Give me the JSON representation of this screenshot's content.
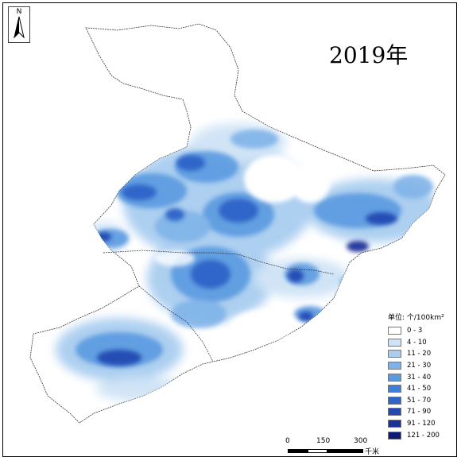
{
  "title": "2019年",
  "north_arrow": {
    "label": "N",
    "icon": "north-arrow-icon"
  },
  "legend": {
    "title": "单位: 个/100km²",
    "classes": [
      {
        "label": "0 - 3",
        "color": "#ffffff"
      },
      {
        "label": "4 - 10",
        "color": "#cfe3f6"
      },
      {
        "label": "11 - 20",
        "color": "#a9cdf0"
      },
      {
        "label": "21 - 30",
        "color": "#7fb3e8"
      },
      {
        "label": "31 - 40",
        "color": "#5a9ae0"
      },
      {
        "label": "41 - 50",
        "color": "#3d7fd8"
      },
      {
        "label": "51 - 70",
        "color": "#2e64c8"
      },
      {
        "label": "71 - 90",
        "color": "#2449b2"
      },
      {
        "label": "91 - 120",
        "color": "#1a3196"
      },
      {
        "label": "121 - 200",
        "color": "#0d1a78"
      }
    ]
  },
  "scale_bar": {
    "ticks": [
      "0",
      "150",
      "300"
    ],
    "unit": "千米"
  }
}
